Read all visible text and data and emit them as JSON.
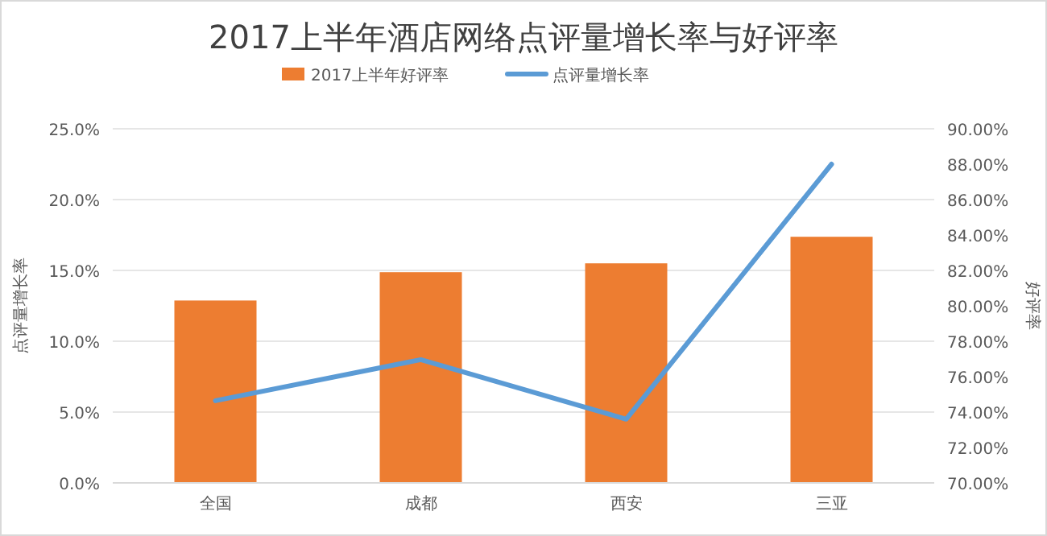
{
  "chart_data": {
    "type": "bar",
    "title": "2017上半年酒店网络点评量增长率与好评率",
    "categories": [
      "全国",
      "成都",
      "西安",
      "三亚"
    ],
    "series": [
      {
        "name": "2017上半年好评率",
        "axis": "y2",
        "color": "#ed7d31",
        "values": [
          80.3,
          81.9,
          82.4,
          83.9
        ]
      },
      {
        "name": "点评量增长率",
        "type": "line",
        "axis": "y",
        "color": "#5b9bd5",
        "values": [
          5.8,
          8.7,
          4.5,
          22.5
        ]
      }
    ],
    "ylabel": "点评量增长率",
    "y2label": "好评率",
    "ylim": [
      0,
      25
    ],
    "yticks": [
      {
        "value": 0,
        "label": "0.0%"
      },
      {
        "value": 5,
        "label": "5.0%"
      },
      {
        "value": 10,
        "label": "10.0%"
      },
      {
        "value": 15,
        "label": "15.0%"
      },
      {
        "value": 20,
        "label": "20.0%"
      },
      {
        "value": 25,
        "label": "25.0%"
      }
    ],
    "y2lim": [
      70,
      90
    ],
    "y2ticks": [
      {
        "value": 70,
        "label": "70.00%"
      },
      {
        "value": 72,
        "label": "72.00%"
      },
      {
        "value": 74,
        "label": "74.00%"
      },
      {
        "value": 76,
        "label": "76.00%"
      },
      {
        "value": 78,
        "label": "78.00%"
      },
      {
        "value": 80,
        "label": "80.00%"
      },
      {
        "value": 82,
        "label": "82.00%"
      },
      {
        "value": 84,
        "label": "84.00%"
      },
      {
        "value": 86,
        "label": "86.00%"
      },
      {
        "value": 88,
        "label": "88.00%"
      },
      {
        "value": 90,
        "label": "90.00%"
      }
    ],
    "grid": "y",
    "legend": "top",
    "marker": "none",
    "line_style": "solid"
  }
}
